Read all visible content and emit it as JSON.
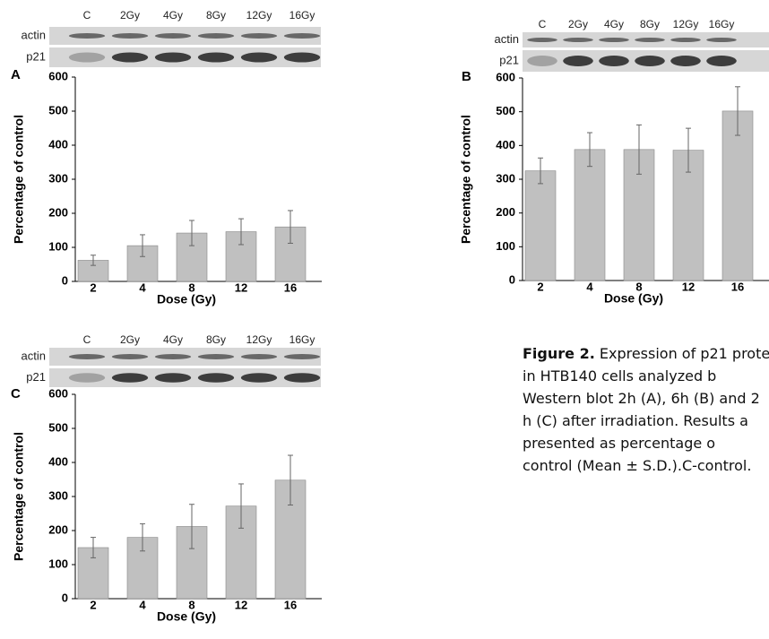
{
  "chart_data": [
    {
      "type": "bar",
      "panel": "A",
      "blot": {
        "lanes": [
          "C",
          "2Gy",
          "4Gy",
          "8Gy",
          "12Gy",
          "16Gy"
        ],
        "rows": [
          "actin",
          "p21"
        ]
      },
      "categories": [
        "2",
        "4",
        "8",
        "12",
        "16"
      ],
      "values": [
        62,
        105,
        142,
        146,
        160
      ],
      "errors": [
        15,
        32,
        37,
        38,
        48
      ],
      "color": "#c0c0c0",
      "ylim": [
        0,
        600
      ],
      "yticks": [
        0,
        100,
        200,
        300,
        400,
        500,
        600
      ],
      "xlabel": "Dose (Gy)",
      "ylabel": "Percentage of control"
    },
    {
      "type": "bar",
      "panel": "B",
      "blot": {
        "lanes": [
          "C",
          "2Gy",
          "4Gy",
          "8Gy",
          "12Gy",
          "16Gy"
        ],
        "rows": [
          "actin",
          "p21"
        ]
      },
      "categories": [
        "2",
        "4",
        "8",
        "12",
        "16"
      ],
      "values": [
        325,
        388,
        388,
        386,
        502
      ],
      "errors": [
        38,
        50,
        73,
        65,
        72
      ],
      "color": "#c0c0c0",
      "ylim": [
        0,
        600
      ],
      "yticks": [
        0,
        100,
        200,
        300,
        400,
        500,
        600
      ],
      "xlabel": "Dose (Gy)",
      "ylabel": "Percentage of control"
    },
    {
      "type": "bar",
      "panel": "C",
      "blot": {
        "lanes": [
          "C",
          "2Gy",
          "4Gy",
          "8Gy",
          "12Gy",
          "16Gy"
        ],
        "rows": [
          "actin",
          "p21"
        ]
      },
      "categories": [
        "2",
        "4",
        "8",
        "12",
        "16"
      ],
      "values": [
        150,
        180,
        212,
        272,
        348
      ],
      "errors": [
        30,
        40,
        65,
        65,
        73
      ],
      "color": "#c0c0c0",
      "ylim": [
        0,
        600
      ],
      "yticks": [
        0,
        100,
        200,
        300,
        400,
        500,
        600
      ],
      "xlabel": "Dose (Gy)",
      "ylabel": "Percentage of control"
    }
  ],
  "caption": {
    "label": "Figure 2.",
    "lines": [
      " Expression of p21 prote",
      "in HTB140 cells analyzed b",
      "Western blot 2h (A), 6h (B) and 2",
      "h (C) after irradiation. Results a",
      "presented as percentage o",
      "control (Mean ± S.D.).C-control."
    ]
  }
}
